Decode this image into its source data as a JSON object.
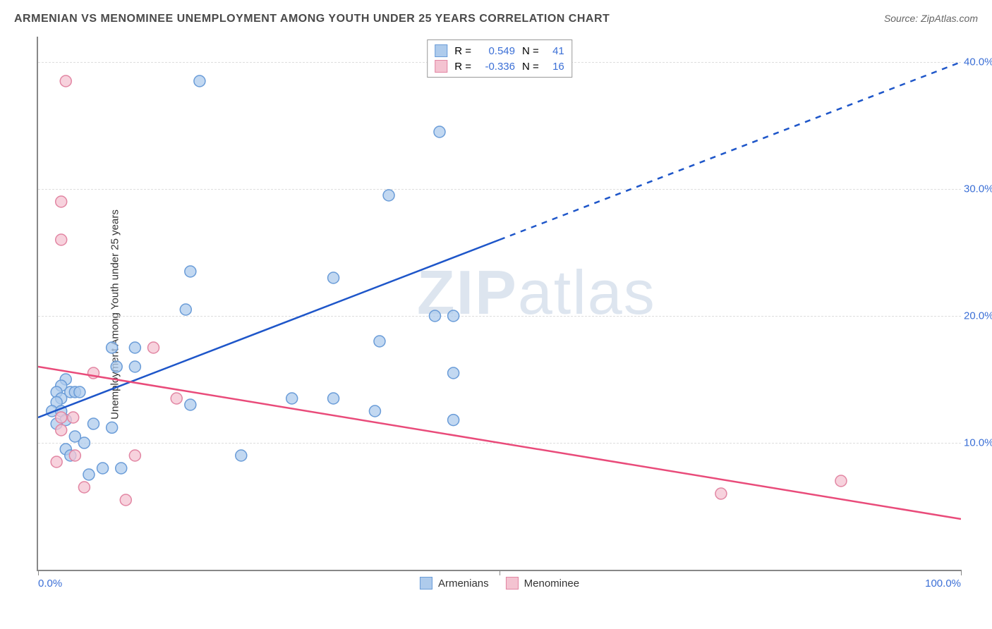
{
  "title": "ARMENIAN VS MENOMINEE UNEMPLOYMENT AMONG YOUTH UNDER 25 YEARS CORRELATION CHART",
  "source": "Source: ZipAtlas.com",
  "ylabel": "Unemployment Among Youth under 25 years",
  "watermark_bold": "ZIP",
  "watermark_light": "atlas",
  "chart": {
    "type": "scatter",
    "xlim": [
      0,
      100
    ],
    "ylim": [
      0,
      42
    ],
    "xaxis": {
      "label_left": "0.0%",
      "label_right": "100.0%",
      "tick_positions": [
        0,
        50,
        100
      ]
    },
    "yaxis": {
      "ticks": [
        10,
        20,
        30,
        40
      ],
      "tick_labels": [
        "10.0%",
        "20.0%",
        "30.0%",
        "40.0%"
      ],
      "grid_color": "#dddddd",
      "grid_dash": "4 4"
    },
    "series": [
      {
        "name": "Armenians",
        "marker_fill": "#aecbec",
        "marker_stroke": "#6a9cd8",
        "marker_radius": 8,
        "marker_opacity": 0.75,
        "trend_color": "#1e56c9",
        "trend_width": 2.5,
        "trend_solid": {
          "x1": 0,
          "y1": 12.0,
          "x2": 50,
          "y2": 26.0
        },
        "trend_dash": {
          "x1": 50,
          "y1": 26.0,
          "x2": 100,
          "y2": 40.0
        },
        "R": "0.549",
        "N": "41",
        "points": [
          [
            17.5,
            38.5
          ],
          [
            43.5,
            34.5
          ],
          [
            38,
            29.5
          ],
          [
            16.5,
            23.5
          ],
          [
            32,
            23.0
          ],
          [
            16,
            20.5
          ],
          [
            45,
            20.0
          ],
          [
            43,
            20.0
          ],
          [
            37,
            18.0
          ],
          [
            10.5,
            17.5
          ],
          [
            8,
            17.5
          ],
          [
            45,
            15.5
          ],
          [
            10.5,
            16.0
          ],
          [
            8.5,
            16.0
          ],
          [
            3,
            15.0
          ],
          [
            2.5,
            14.5
          ],
          [
            3.5,
            14.0
          ],
          [
            4,
            14.0
          ],
          [
            2,
            14.0
          ],
          [
            2.5,
            13.5
          ],
          [
            4.5,
            14.0
          ],
          [
            27.5,
            13.5
          ],
          [
            32,
            13.5
          ],
          [
            16.5,
            13.0
          ],
          [
            2,
            13.2
          ],
          [
            1.5,
            12.5
          ],
          [
            2.5,
            12.5
          ],
          [
            36.5,
            12.5
          ],
          [
            3,
            11.8
          ],
          [
            45,
            11.8
          ],
          [
            6,
            11.5
          ],
          [
            2,
            11.5
          ],
          [
            4,
            10.5
          ],
          [
            5,
            10.0
          ],
          [
            8,
            11.2
          ],
          [
            22,
            9.0
          ],
          [
            9,
            8.0
          ],
          [
            7,
            8.0
          ],
          [
            3,
            9.5
          ],
          [
            5.5,
            7.5
          ],
          [
            3.5,
            9.0
          ]
        ]
      },
      {
        "name": "Menominee",
        "marker_fill": "#f4c3d1",
        "marker_stroke": "#e286a3",
        "marker_radius": 8,
        "marker_opacity": 0.75,
        "trend_color": "#e94b7a",
        "trend_width": 2.5,
        "trend_solid": {
          "x1": 0,
          "y1": 16.0,
          "x2": 100,
          "y2": 4.0
        },
        "R": "-0.336",
        "N": "16",
        "points": [
          [
            3,
            38.5
          ],
          [
            2.5,
            29.0
          ],
          [
            2.5,
            26.0
          ],
          [
            12.5,
            17.5
          ],
          [
            6,
            15.5
          ],
          [
            15,
            13.5
          ],
          [
            2.5,
            12.0
          ],
          [
            3.8,
            12.0
          ],
          [
            4,
            9.0
          ],
          [
            10.5,
            9.0
          ],
          [
            2,
            8.5
          ],
          [
            5,
            6.5
          ],
          [
            9.5,
            5.5
          ],
          [
            74,
            6.0
          ],
          [
            87,
            7.0
          ],
          [
            2.5,
            11.0
          ]
        ]
      }
    ],
    "legend_top_labels": {
      "R_prefix": "R =",
      "N_prefix": "N ="
    },
    "legend_bottom_labels": [
      "Armenians",
      "Menominee"
    ],
    "title_color": "#4a4a4a",
    "axis_color": "#888888",
    "background_color": "#ffffff"
  }
}
